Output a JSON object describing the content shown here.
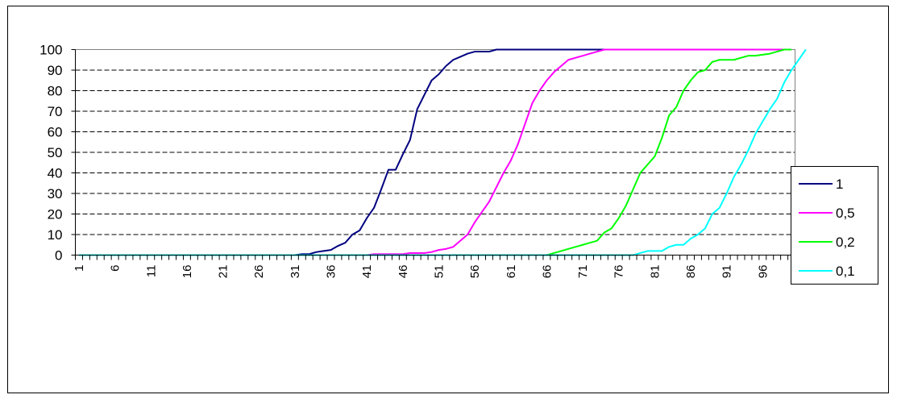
{
  "chart_data": {
    "type": "line",
    "title": "",
    "xlabel": "",
    "ylabel": "",
    "ylim": [
      0,
      100
    ],
    "yticks": [
      "0",
      "10",
      "20",
      "30",
      "40",
      "50",
      "60",
      "70",
      "80",
      "90",
      "100"
    ],
    "xticks": [
      "1",
      "6",
      "11",
      "16",
      "21",
      "26",
      "31",
      "36",
      "41",
      "46",
      "51",
      "56",
      "61",
      "66",
      "71",
      "76",
      "81",
      "86",
      "91",
      "96"
    ],
    "x_count": 100,
    "grid": "horizontal dashed",
    "plot_background": "#ffffff",
    "legend_position": "right",
    "series": [
      {
        "name": "1",
        "color": "#000080",
        "points": [
          [
            1,
            0
          ],
          [
            31,
            0
          ],
          [
            32,
            0.5
          ],
          [
            33,
            0.5
          ],
          [
            34,
            1.5
          ],
          [
            35,
            2
          ],
          [
            36,
            2.5
          ],
          [
            37,
            4.5
          ],
          [
            38,
            6
          ],
          [
            39,
            10
          ],
          [
            40,
            12
          ],
          [
            41,
            18
          ],
          [
            42,
            23
          ],
          [
            43,
            32
          ],
          [
            44,
            41.5
          ],
          [
            45,
            41.5
          ],
          [
            46,
            49
          ],
          [
            47,
            56
          ],
          [
            48,
            71
          ],
          [
            49,
            78
          ],
          [
            50,
            85
          ],
          [
            51,
            88
          ],
          [
            52,
            92
          ],
          [
            53,
            95
          ],
          [
            54,
            96.5
          ],
          [
            55,
            98
          ],
          [
            56,
            99
          ],
          [
            57,
            99
          ],
          [
            58,
            99
          ],
          [
            59,
            100
          ],
          [
            100,
            100
          ]
        ]
      },
      {
        "name": "0,5",
        "color": "#ff00ff",
        "points": [
          [
            1,
            0
          ],
          [
            41,
            0
          ],
          [
            42,
            0.5
          ],
          [
            43,
            0.5
          ],
          [
            44,
            0.5
          ],
          [
            45,
            0.5
          ],
          [
            46,
            0.5
          ],
          [
            47,
            1
          ],
          [
            48,
            1
          ],
          [
            49,
            1
          ],
          [
            50,
            1.5
          ],
          [
            51,
            2.5
          ],
          [
            52,
            3
          ],
          [
            53,
            4
          ],
          [
            54,
            7
          ],
          [
            55,
            10
          ],
          [
            56,
            16
          ],
          [
            57,
            21
          ],
          [
            58,
            26
          ],
          [
            59,
            33
          ],
          [
            60,
            40
          ],
          [
            61,
            46
          ],
          [
            62,
            54
          ],
          [
            63,
            64
          ],
          [
            64,
            74
          ],
          [
            65,
            80
          ],
          [
            66,
            85
          ],
          [
            67,
            89
          ],
          [
            68,
            92
          ],
          [
            69,
            95
          ],
          [
            70,
            96
          ],
          [
            71,
            97
          ],
          [
            72,
            98
          ],
          [
            73,
            99
          ],
          [
            74,
            100
          ],
          [
            100,
            100
          ]
        ]
      },
      {
        "name": "0,2",
        "color": "#00ff00",
        "points": [
          [
            1,
            0
          ],
          [
            66,
            0
          ],
          [
            67,
            1
          ],
          [
            68,
            2
          ],
          [
            69,
            3
          ],
          [
            70,
            4
          ],
          [
            71,
            5
          ],
          [
            72,
            6
          ],
          [
            73,
            7
          ],
          [
            74,
            11
          ],
          [
            75,
            13
          ],
          [
            76,
            18
          ],
          [
            77,
            24
          ],
          [
            78,
            32
          ],
          [
            79,
            40
          ],
          [
            80,
            44
          ],
          [
            81,
            48
          ],
          [
            82,
            57
          ],
          [
            83,
            68
          ],
          [
            84,
            72
          ],
          [
            85,
            80
          ],
          [
            86,
            85
          ],
          [
            87,
            89
          ],
          [
            88,
            90
          ],
          [
            89,
            94
          ],
          [
            90,
            95
          ],
          [
            91,
            95
          ],
          [
            92,
            95
          ],
          [
            93,
            96
          ],
          [
            94,
            97
          ],
          [
            95,
            97
          ],
          [
            96,
            97.5
          ],
          [
            97,
            98
          ],
          [
            98,
            99
          ],
          [
            99,
            100
          ],
          [
            100,
            100
          ]
        ]
      },
      {
        "name": "0,1",
        "color": "#00ffff",
        "points": [
          [
            1,
            0
          ],
          [
            78,
            0
          ],
          [
            79,
            1
          ],
          [
            80,
            2
          ],
          [
            81,
            2
          ],
          [
            82,
            2
          ],
          [
            83,
            4
          ],
          [
            84,
            5
          ],
          [
            85,
            5
          ],
          [
            86,
            8
          ],
          [
            87,
            10
          ],
          [
            88,
            13
          ],
          [
            89,
            20
          ],
          [
            90,
            23
          ],
          [
            91,
            30
          ],
          [
            92,
            38
          ],
          [
            93,
            44
          ],
          [
            94,
            51
          ],
          [
            95,
            59
          ],
          [
            96,
            65
          ],
          [
            97,
            71
          ],
          [
            98,
            76
          ],
          [
            99,
            84
          ],
          [
            100,
            90
          ],
          [
            101,
            95
          ],
          [
            102,
            100
          ]
        ]
      }
    ]
  }
}
